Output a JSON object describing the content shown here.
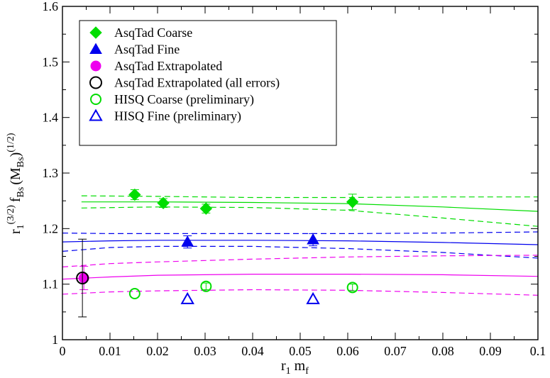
{
  "chart_data": {
    "type": "scatter",
    "xlabel": {
      "main": "r",
      "sub1": "1",
      "main2": " m",
      "sub2": "f"
    },
    "ylabel": {
      "r": "r",
      "r_sub": "1",
      "r_sup": "(3/2)",
      "f": "f",
      "f_sub": "Bs",
      "m_open": "(M",
      "m_sub": "Bs",
      "m_close": ")",
      "m_sup": "(1/2)"
    },
    "xlim": [
      0,
      0.1
    ],
    "ylim": [
      1.0,
      1.6
    ],
    "xticks": [
      0,
      0.01,
      0.02,
      0.03,
      0.04,
      0.05,
      0.06,
      0.07,
      0.08,
      0.09,
      0.1
    ],
    "xtick_labels": [
      "0",
      "0.01",
      "0.02",
      "0.03",
      "0.04",
      "0.05",
      "0.06",
      "0.07",
      "0.08",
      "0.09",
      "0.1"
    ],
    "yticks": [
      1.0,
      1.1,
      1.2,
      1.3,
      1.4,
      1.5,
      1.6
    ],
    "ytick_labels": [
      "1",
      "1.1",
      "1.2",
      "1.3",
      "1.4",
      "1.5",
      "1.6"
    ],
    "legend_position": "top-left",
    "series": [
      {
        "name": "AsqTad Coarse",
        "marker": "diamond",
        "filled": true,
        "color": "#00dd00",
        "points": [
          {
            "x": 0.0152,
            "y": 1.261,
            "err": 0.009
          },
          {
            "x": 0.0212,
            "y": 1.246,
            "err": 0.008
          },
          {
            "x": 0.0302,
            "y": 1.236,
            "err": 0.008
          },
          {
            "x": 0.061,
            "y": 1.248,
            "err": 0.014
          }
        ]
      },
      {
        "name": "AsqTad Fine",
        "marker": "triangle",
        "filled": true,
        "color": "#0000ee",
        "points": [
          {
            "x": 0.0263,
            "y": 1.176,
            "err": 0.011
          },
          {
            "x": 0.0527,
            "y": 1.18,
            "err": 0.011
          }
        ]
      },
      {
        "name": "AsqTad Extrapolated",
        "marker": "circle",
        "filled": true,
        "color": "#ee00ee",
        "points": [
          {
            "x": 0.0045,
            "y": 1.111,
            "err": 0.021
          }
        ]
      },
      {
        "name": "AsqTad Extrapolated (all errors)",
        "marker": "circle",
        "filled": false,
        "color": "#000000",
        "points": [
          {
            "x": 0.0042,
            "y": 1.111,
            "err": 0.07
          }
        ]
      },
      {
        "name": "HISQ Coarse (preliminary)",
        "marker": "circle",
        "filled": false,
        "color": "#00dd00",
        "points": [
          {
            "x": 0.0152,
            "y": 1.083,
            "err": 0.0
          },
          {
            "x": 0.0302,
            "y": 1.096,
            "err": 0.006
          },
          {
            "x": 0.061,
            "y": 1.094,
            "err": 0.006
          }
        ]
      },
      {
        "name": "HISQ Fine (preliminary)",
        "marker": "triangle",
        "filled": false,
        "color": "#0000ee",
        "points": [
          {
            "x": 0.0263,
            "y": 1.073,
            "err": 0.0
          },
          {
            "x": 0.0527,
            "y": 1.073,
            "err": 0.0
          }
        ]
      }
    ],
    "fit_curves": [
      {
        "color": "#00dd00",
        "style": "solid",
        "x": [
          0.004,
          0.02,
          0.04,
          0.06,
          0.08,
          0.1
        ],
        "y": [
          1.248,
          1.248,
          1.247,
          1.245,
          1.239,
          1.231
        ]
      },
      {
        "color": "#00dd00",
        "style": "dashed",
        "x": [
          0.004,
          0.02,
          0.04,
          0.06,
          0.08,
          0.1
        ],
        "y": [
          1.259,
          1.258,
          1.256,
          1.256,
          1.257,
          1.257
        ]
      },
      {
        "color": "#00dd00",
        "style": "dashed",
        "x": [
          0.004,
          0.02,
          0.04,
          0.06,
          0.08,
          0.1
        ],
        "y": [
          1.237,
          1.239,
          1.238,
          1.233,
          1.219,
          1.204
        ]
      },
      {
        "color": "#0000ee",
        "style": "solid",
        "x": [
          0.0,
          0.01,
          0.02,
          0.04,
          0.06,
          0.08,
          0.1
        ],
        "y": [
          1.176,
          1.178,
          1.179,
          1.179,
          1.178,
          1.175,
          1.171
        ]
      },
      {
        "color": "#0000ee",
        "style": "dashed",
        "x": [
          0.0,
          0.01,
          0.02,
          0.04,
          0.06,
          0.08,
          0.1
        ],
        "y": [
          1.192,
          1.191,
          1.191,
          1.191,
          1.191,
          1.192,
          1.194
        ]
      },
      {
        "color": "#0000ee",
        "style": "dashed",
        "x": [
          0.0,
          0.01,
          0.02,
          0.04,
          0.06,
          0.08,
          0.1
        ],
        "y": [
          1.159,
          1.166,
          1.168,
          1.168,
          1.164,
          1.157,
          1.147
        ]
      },
      {
        "color": "#ee00ee",
        "style": "solid",
        "x": [
          0.0,
          0.01,
          0.02,
          0.04,
          0.06,
          0.08,
          0.1
        ],
        "y": [
          1.109,
          1.113,
          1.116,
          1.118,
          1.118,
          1.117,
          1.114
        ]
      },
      {
        "color": "#ee00ee",
        "style": "dashed",
        "x": [
          0.0,
          0.01,
          0.02,
          0.04,
          0.06,
          0.08,
          0.1
        ],
        "y": [
          1.131,
          1.137,
          1.14,
          1.145,
          1.149,
          1.151,
          1.152
        ]
      },
      {
        "color": "#ee00ee",
        "style": "dashed",
        "x": [
          0.0,
          0.01,
          0.02,
          0.04,
          0.06,
          0.08,
          0.1
        ],
        "y": [
          1.082,
          1.086,
          1.088,
          1.09,
          1.089,
          1.085,
          1.08
        ]
      }
    ]
  }
}
